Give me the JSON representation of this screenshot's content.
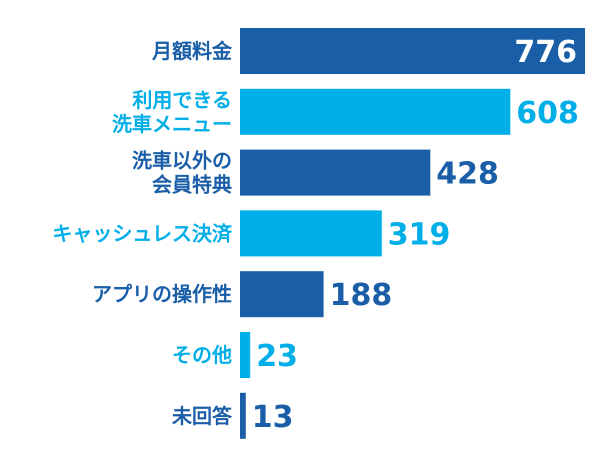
{
  "colors": {
    "dark": "#1a5ea8",
    "light": "#00aee8",
    "value_inside": "#ffffff",
    "background": "#ffffff"
  },
  "chart_data": {
    "type": "bar",
    "orientation": "horizontal",
    "categories": [
      [
        "月額料金"
      ],
      [
        "利用できる",
        "洗車メニュー"
      ],
      [
        "洗車以外の",
        "会員特典"
      ],
      [
        "キャッシュレス決済"
      ],
      [
        "アプリの操作性"
      ],
      [
        "その他"
      ],
      [
        "未回答"
      ]
    ],
    "values": [
      776,
      608,
      428,
      319,
      188,
      23,
      13
    ],
    "bar_colors": [
      "dark",
      "light",
      "dark",
      "light",
      "dark",
      "light",
      "dark"
    ],
    "xlim": [
      0,
      776
    ],
    "grid": false,
    "legend": "none",
    "title": "",
    "xlabel": "",
    "ylabel": ""
  }
}
